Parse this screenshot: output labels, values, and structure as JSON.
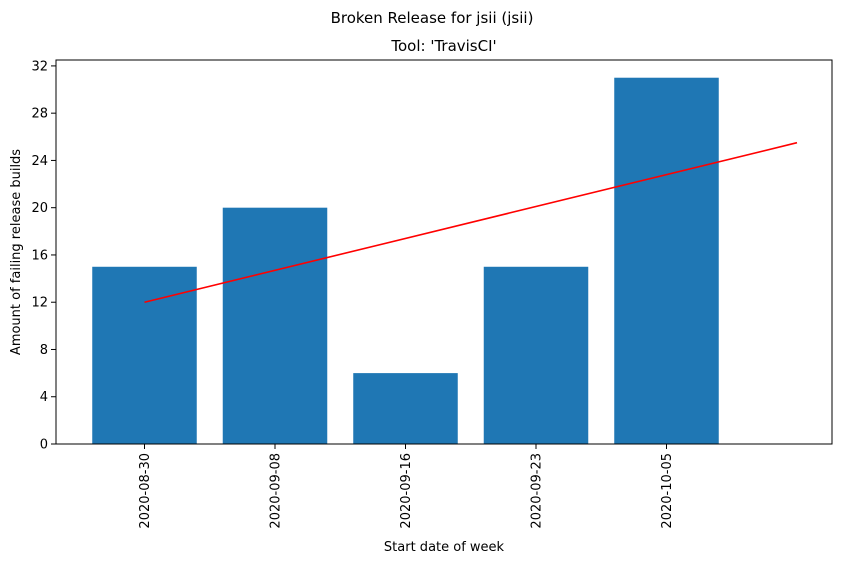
{
  "chart_data": {
    "type": "bar",
    "suptitle": "Broken Release for jsii (jsii)",
    "title": "Tool: 'TravisCI'",
    "xlabel": "Start date of week",
    "ylabel": "Amount of failing release builds",
    "categories": [
      "2020-08-30",
      "2020-09-08",
      "2020-09-16",
      "2020-09-23",
      "2020-10-05"
    ],
    "series": [
      {
        "values": [
          15,
          20,
          6,
          15,
          31
        ],
        "color": "#1f77b4"
      }
    ],
    "trend_line": {
      "color": "#ff0000",
      "start": 12.0,
      "end": 25.5
    },
    "ylim": [
      0,
      32.5
    ],
    "yticks": [
      0,
      4,
      8,
      12,
      16,
      20,
      24,
      28,
      32
    ],
    "grid": false
  }
}
